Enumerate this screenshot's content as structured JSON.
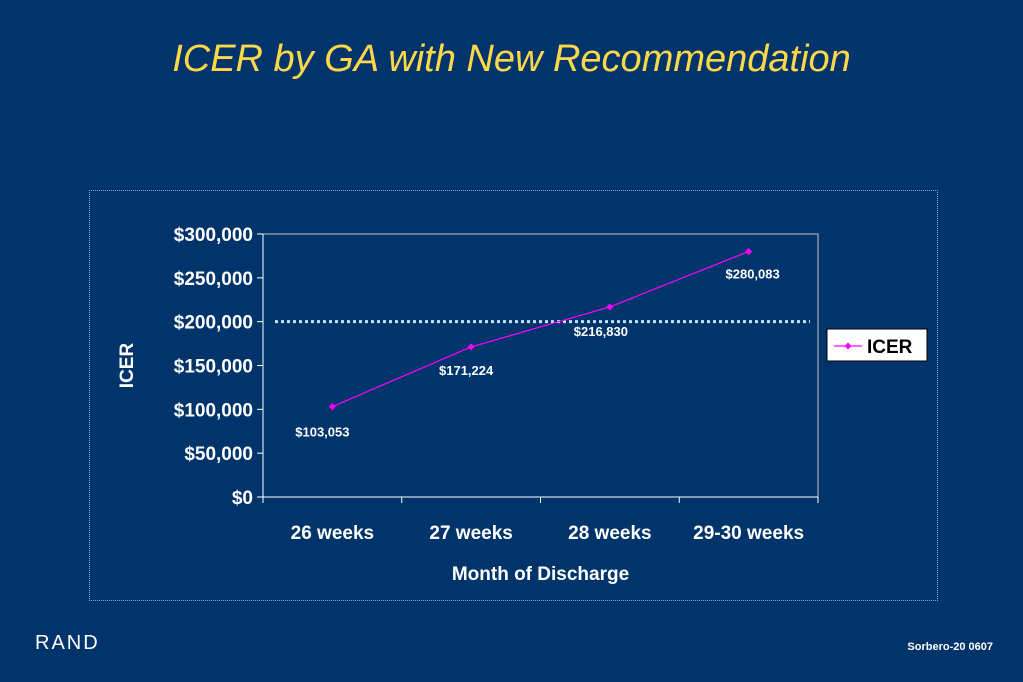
{
  "slide": {
    "title": "ICER by GA with New Recommendation",
    "logo": "RAND",
    "code": "Sorbero-20  0607"
  },
  "chart_data": {
    "type": "line",
    "categories": [
      "26 weeks",
      "27 weeks",
      "28 weeks",
      "29-30 weeks"
    ],
    "series": [
      {
        "name": "ICER",
        "values": [
          103053,
          171224,
          216830,
          280083
        ],
        "labels": [
          "$103,053",
          "$171,224",
          "$216,830",
          "$280,083"
        ],
        "color": "#FF00FF"
      }
    ],
    "reference_line": {
      "value": 200000,
      "style": "dotted",
      "color": "#BFE3F0"
    },
    "xlabel": "Month of Discharge",
    "ylabel": "ICER",
    "ylim": [
      0,
      300000
    ],
    "yticks": [
      0,
      50000,
      100000,
      150000,
      200000,
      250000,
      300000
    ],
    "ytick_labels": [
      "$0",
      "$50,000",
      "$100,000",
      "$150,000",
      "$200,000",
      "$250,000",
      "$300,000"
    ],
    "grid": false,
    "legend": {
      "placement": "right",
      "background": "#FFFFFF"
    }
  }
}
